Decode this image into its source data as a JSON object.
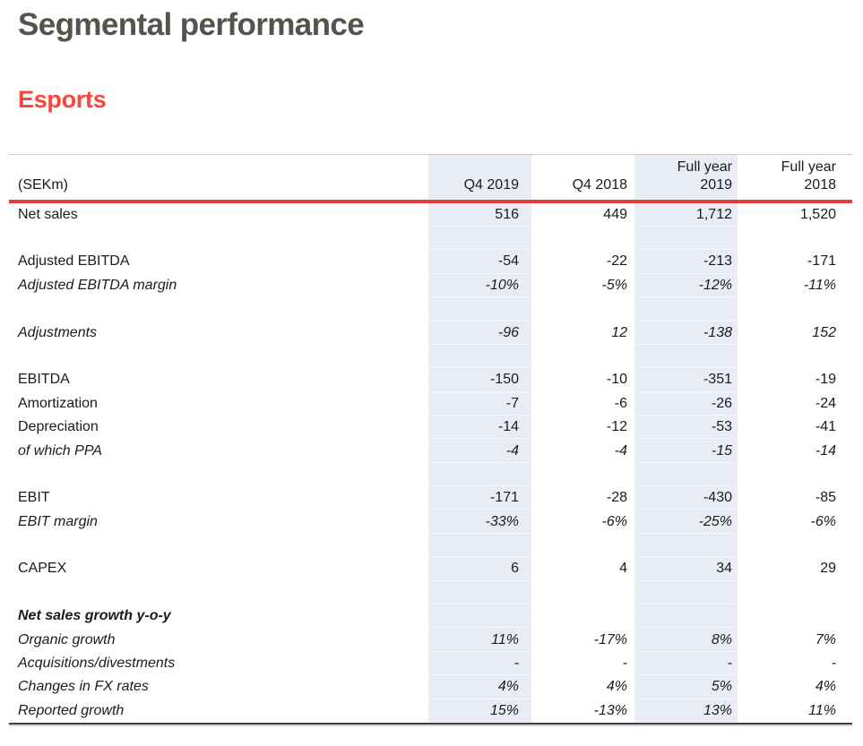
{
  "page": {
    "title": "Segmental performance",
    "subtitle": "Esports"
  },
  "colors": {
    "title_gray": "#56534d",
    "subtitle_red": "#fa453c",
    "header_rule_red": "#e23d3a",
    "highlight_column": "#eaecf5",
    "top_rule_gray": "#c7c9cd",
    "bottom_rule_dark": "#3e4045"
  },
  "table": {
    "unit_label": "(SEKm)",
    "columns": [
      {
        "key": "q4-2019",
        "label": "Q4 2019",
        "highlighted": true
      },
      {
        "key": "q4-2018",
        "label": "Q4 2018",
        "highlighted": false
      },
      {
        "key": "fy-2019",
        "label": "Full year\n2019",
        "highlighted": true
      },
      {
        "key": "fy-2018",
        "label": "Full year\n2018",
        "highlighted": false
      }
    ],
    "rows": [
      {
        "type": "normal",
        "label": "Net sales",
        "values": [
          "516",
          "449",
          "1,712",
          "1,520"
        ]
      },
      {
        "type": "spacer",
        "label": "",
        "values": [
          "",
          "",
          "",
          ""
        ]
      },
      {
        "type": "normal",
        "label": "Adjusted EBITDA",
        "values": [
          "-54",
          "-22",
          "-213",
          "-171"
        ]
      },
      {
        "type": "italic",
        "label": "Adjusted EBITDA margin",
        "values": [
          "-10%",
          "-5%",
          "-12%",
          "-11%"
        ]
      },
      {
        "type": "spacer",
        "label": "",
        "values": [
          "",
          "",
          "",
          ""
        ]
      },
      {
        "type": "italic",
        "label": "Adjustments",
        "values": [
          "-96",
          "12",
          "-138",
          "152"
        ]
      },
      {
        "type": "spacer",
        "label": "",
        "values": [
          "",
          "",
          "",
          ""
        ]
      },
      {
        "type": "normal",
        "label": "EBITDA",
        "values": [
          "-150",
          "-10",
          "-351",
          "-19"
        ]
      },
      {
        "type": "normal",
        "label": "Amortization",
        "values": [
          "-7",
          "-6",
          "-26",
          "-24"
        ]
      },
      {
        "type": "normal",
        "label": "Depreciation",
        "values": [
          "-14",
          "-12",
          "-53",
          "-41"
        ]
      },
      {
        "type": "italic",
        "label": "of which PPA",
        "values": [
          "-4",
          "-4",
          "-15",
          "-14"
        ]
      },
      {
        "type": "spacer",
        "label": "",
        "values": [
          "",
          "",
          "",
          ""
        ]
      },
      {
        "type": "normal",
        "label": "EBIT",
        "values": [
          "-171",
          "-28",
          "-430",
          "-85"
        ]
      },
      {
        "type": "italic",
        "label": "EBIT margin",
        "values": [
          "-33%",
          "-6%",
          "-25%",
          "-6%"
        ]
      },
      {
        "type": "spacer",
        "label": "",
        "values": [
          "",
          "",
          "",
          ""
        ]
      },
      {
        "type": "normal",
        "label": "CAPEX",
        "values": [
          "6",
          "4",
          "34",
          "29"
        ]
      },
      {
        "type": "spacer",
        "label": "",
        "values": [
          "",
          "",
          "",
          ""
        ]
      },
      {
        "type": "bolditalic",
        "label": "Net sales growth y-o-y",
        "values": [
          "",
          "",
          "",
          ""
        ]
      },
      {
        "type": "italic",
        "label": "Organic growth",
        "values": [
          "11%",
          "-17%",
          "8%",
          "7%"
        ]
      },
      {
        "type": "italic",
        "label": "Acquisitions/divestments",
        "values": [
          "-",
          "-",
          "-",
          "-"
        ]
      },
      {
        "type": "italic",
        "label": "Changes in FX rates",
        "values": [
          "4%",
          "4%",
          "5%",
          "4%"
        ]
      },
      {
        "type": "italic",
        "label": "Reported growth",
        "values": [
          "15%",
          "-13%",
          "13%",
          "11%"
        ]
      }
    ]
  }
}
